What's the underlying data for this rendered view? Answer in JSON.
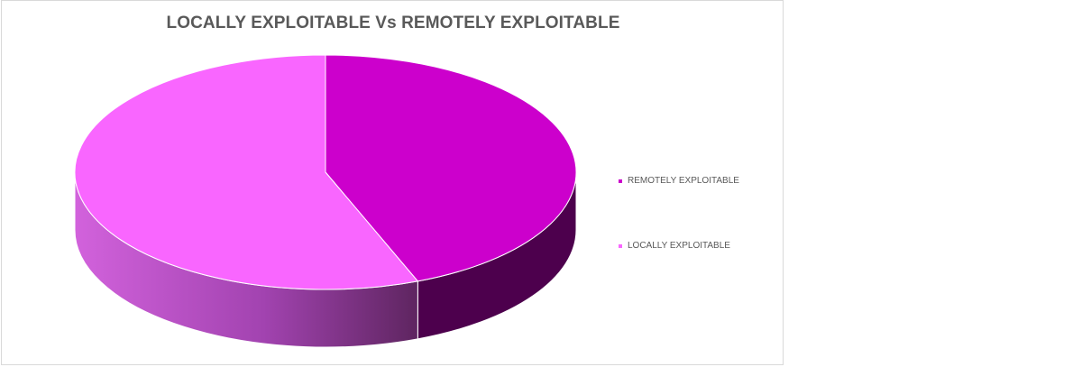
{
  "chart_data": {
    "type": "pie",
    "title": "LOCALLY EXPLOITABLE Vs REMOTELY EXPLOITABLE",
    "categories": [
      "REMOTELY EXPLOITABLE",
      "LOCALLY EXPLOITABLE"
    ],
    "values": [
      44,
      56
    ],
    "unit": "percent",
    "colors": [
      "#cc00cc",
      "#f966ff"
    ],
    "side_colors": [
      "#4d004d",
      "#c34cd4"
    ],
    "style": "3d-pie",
    "legend_position": "right",
    "data_labels": false
  }
}
